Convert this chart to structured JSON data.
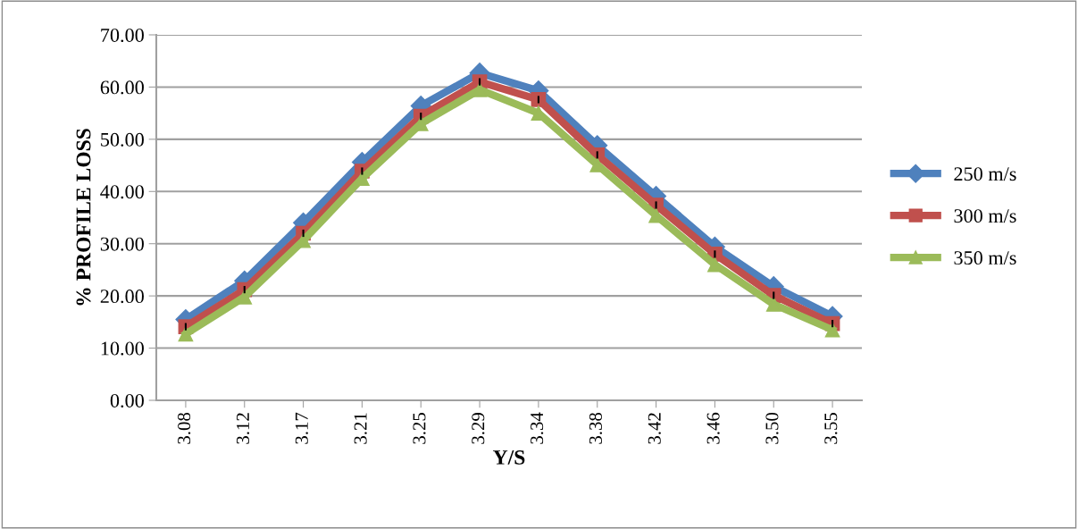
{
  "chart_data": {
    "type": "line",
    "xlabel": "Y/S",
    "ylabel": "% PROFILE LOSS",
    "categories": [
      "3.08",
      "3.12",
      "3.17",
      "3.21",
      "3.25",
      "3.29",
      "3.34",
      "3.38",
      "3.42",
      "3.46",
      "3.50",
      "3.55"
    ],
    "series": [
      {
        "name": "250 m/s",
        "color": "#4f81bd",
        "marker": "diamond",
        "values": [
          15.5,
          22.9,
          34.0,
          45.6,
          56.4,
          62.7,
          59.3,
          48.8,
          39.1,
          29.4,
          21.8,
          16.1
        ]
      },
      {
        "name": "300 m/s",
        "color": "#c0504d",
        "marker": "square",
        "values": [
          14.1,
          21.2,
          32.0,
          43.9,
          54.4,
          61.0,
          57.6,
          47.0,
          37.4,
          28.0,
          20.1,
          14.7
        ],
        "errors": [
          0.7,
          0.7,
          0.7,
          0.7,
          0.7,
          0.7,
          0.7,
          0.7,
          0.7,
          0.7,
          0.7,
          0.7
        ]
      },
      {
        "name": "350 m/s",
        "color": "#9bbb59",
        "marker": "triangle",
        "values": [
          12.7,
          19.8,
          30.6,
          42.5,
          53.0,
          59.5,
          55.0,
          45.1,
          35.4,
          26.0,
          18.4,
          13.5
        ]
      }
    ],
    "ylim": [
      0,
      70
    ],
    "yticks": [
      {
        "value": 0,
        "label": "0.00"
      },
      {
        "value": 10,
        "label": "10.00"
      },
      {
        "value": 20,
        "label": "20.00"
      },
      {
        "value": 30,
        "label": "30.00"
      },
      {
        "value": 40,
        "label": "40.00"
      },
      {
        "value": 50,
        "label": "50.00"
      },
      {
        "value": 60,
        "label": "60.00"
      },
      {
        "value": 70,
        "label": "70.00"
      }
    ],
    "grid": "y",
    "legend": "right",
    "line_style": "solid"
  }
}
